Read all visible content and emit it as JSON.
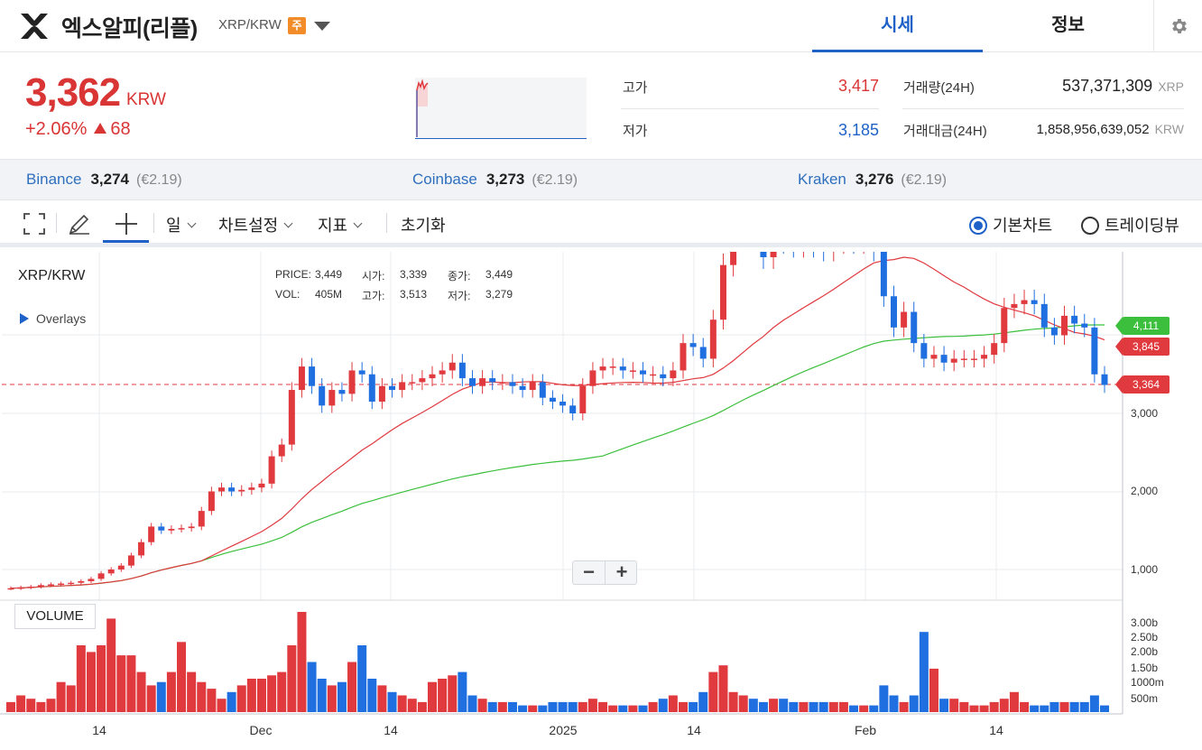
{
  "header": {
    "coin_name": "엑스알피(리플)",
    "pair": "XRP/KRW",
    "badge": "주",
    "tab_price": "시세",
    "tab_info": "정보"
  },
  "price": {
    "current": "3,362",
    "unit": "KRW",
    "change_pct": "+2.06%",
    "change_abs": "68"
  },
  "stats": {
    "high_label": "고가",
    "high_value": "3,417",
    "low_label": "저가",
    "low_value": "3,185",
    "volume_label": "거래량(24H)",
    "volume_value": "537,371,309",
    "volume_unit": "XRP",
    "amount_label": "거래대금(24H)",
    "amount_value": "1,858,956,639,052",
    "amount_unit": "KRW"
  },
  "exchanges": [
    {
      "name": "Binance",
      "price": "3,274",
      "eur": "(€2.19)"
    },
    {
      "name": "Coinbase",
      "price": "3,273",
      "eur": "(€2.19)"
    },
    {
      "name": "Kraken",
      "price": "3,276",
      "eur": "(€2.19)"
    }
  ],
  "toolbar": {
    "interval": "일",
    "chart_settings": "차트설정",
    "indicators": "지표",
    "reset": "초기화",
    "basic_chart": "기본차트",
    "tradingview": "트레이딩뷰"
  },
  "chart": {
    "pair_label": "XRP/KRW",
    "overlays": "Overlays",
    "volume_label": "VOLUME",
    "zoom_out": "−",
    "zoom_in": "+",
    "ohlc": {
      "price_label": "PRICE:",
      "price": "3,449",
      "open_label": "시가:",
      "open": "3,339",
      "close_label": "종가:",
      "close": "3,449",
      "vol_label": "VOL:",
      "vol": "405M",
      "high_label": "고가:",
      "high": "3,513",
      "low_label": "저가:",
      "low": "3,279"
    },
    "price_ticks": [
      "3,000",
      "2,000",
      "1,000"
    ],
    "volume_ticks": [
      "3.00b",
      "2.50b",
      "2.00b",
      "1.50b",
      "1000m",
      "500m"
    ],
    "x_ticks": [
      "14",
      "Dec",
      "14",
      "2025",
      "14",
      "Feb",
      "14"
    ],
    "tags": {
      "ma_long": "4,111",
      "ma_short": "3,845",
      "last": "3,364"
    },
    "colors": {
      "up": "#e0393e",
      "down": "#1f6fe0",
      "ma_short": "#e0393e",
      "ma_long": "#3cbf3c"
    }
  }
}
